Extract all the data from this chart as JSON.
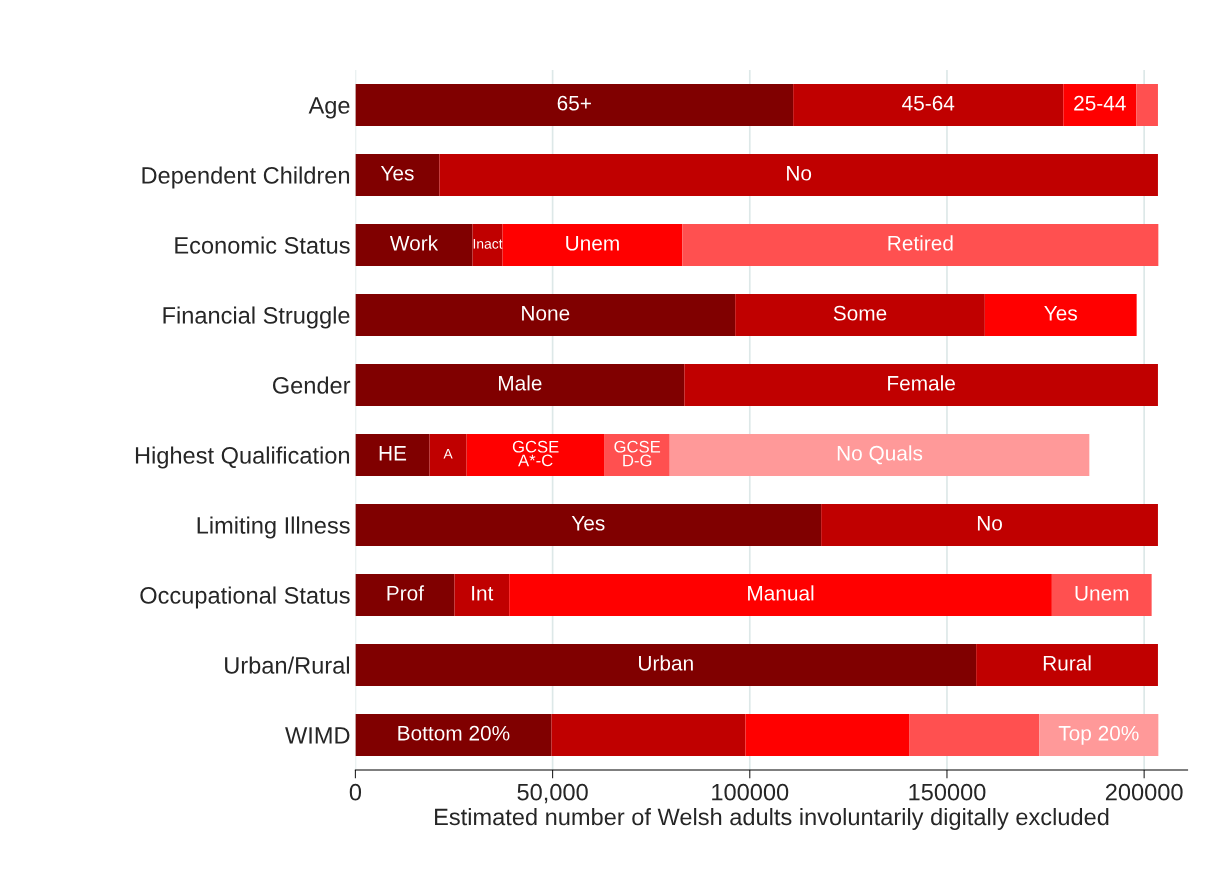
{
  "chart_data": {
    "type": "bar",
    "orientation": "horizontal",
    "stacked": true,
    "xlabel": "Estimated number of Welsh adults involuntarily digitally excluded",
    "categories": [
      "Age",
      "Dependent Children",
      "Economic Status",
      "Financial Struggle",
      "Gender",
      "Highest Qualification",
      "Limiting Illness",
      "Occupational Status",
      "Urban/Rural",
      "WIMD"
    ],
    "series": [
      {
        "color": "#800000",
        "values": [
          111000,
          21300,
          29700,
          96300,
          83400,
          18800,
          118100,
          25100,
          157400,
          49700
        ],
        "value_labels": [
          "65+",
          "Yes",
          "Work",
          "None",
          "Male",
          "HE",
          "Yes",
          "Prof",
          "Urban",
          "Bottom 20%"
        ]
      },
      {
        "color": "#c00000",
        "values": [
          68500,
          182200,
          7600,
          63300,
          120100,
          9400,
          85400,
          13900,
          46100,
          49200
        ],
        "value_labels": [
          "45-64",
          "No",
          "Inact",
          "Some",
          "Female",
          "A",
          "No",
          "Int",
          "Rural",
          null
        ]
      },
      {
        "color": "#ff0000",
        "values": [
          18500,
          null,
          45600,
          38500,
          null,
          35000,
          null,
          137600,
          null,
          41500
        ],
        "value_labels": [
          "25-44",
          null,
          "Unem",
          "Yes",
          null,
          "GCSE\nA*-C",
          null,
          "Manual",
          null,
          null
        ]
      },
      {
        "color": "#ff5050",
        "values": [
          5500,
          null,
          120700,
          null,
          null,
          16500,
          null,
          25300,
          null,
          33000
        ],
        "value_labels": [
          null,
          null,
          "Retired",
          null,
          null,
          "GCSE\nD-G",
          null,
          "Unem",
          null,
          null
        ]
      },
      {
        "color": "#ff9999",
        "values": [
          null,
          null,
          null,
          null,
          null,
          106400,
          null,
          null,
          null,
          30200
        ],
        "value_labels": [
          null,
          null,
          null,
          null,
          null,
          "No Quals",
          null,
          null,
          null,
          "Top 20%"
        ]
      }
    ],
    "xlim": [
      0,
      211000
    ],
    "xticks": [
      0,
      {
        "value": 50000,
        "label": "50,000"
      },
      100000,
      150000,
      200000
    ],
    "grid": "x"
  }
}
